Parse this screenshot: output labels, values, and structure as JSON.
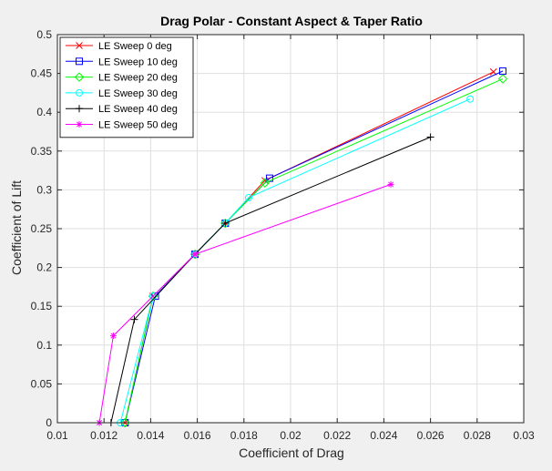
{
  "chart_data": {
    "type": "line",
    "title": "Drag Polar - Constant Aspect & Taper Ratio",
    "xlabel": "Coefficient of Drag",
    "ylabel": "Coefficient of Lift",
    "xlim": [
      0.01,
      0.03
    ],
    "ylim": [
      0,
      0.5
    ],
    "xticks": [
      0.01,
      0.012,
      0.014,
      0.016,
      0.018,
      0.02,
      0.022,
      0.024,
      0.026,
      0.028,
      0.03
    ],
    "xtick_labels": [
      "0.01",
      "0.012",
      "0.014",
      "0.016",
      "0.018",
      "0.02",
      "0.022",
      "0.024",
      "0.026",
      "0.028",
      "0.03"
    ],
    "yticks": [
      0,
      0.05,
      0.1,
      0.15,
      0.2,
      0.25,
      0.3,
      0.35,
      0.4,
      0.45,
      0.5
    ],
    "ytick_labels": [
      "0",
      "0.05",
      "0.1",
      "0.15",
      "0.2",
      "0.25",
      "0.3",
      "0.35",
      "0.4",
      "0.45",
      "0.5"
    ],
    "grid": true,
    "legend_position": "top-left",
    "series": [
      {
        "name": "LE Sweep 0 deg",
        "color": "#ff0000",
        "marker": "x",
        "x": [
          0.0129,
          0.0141,
          0.0159,
          0.0172,
          0.0189,
          0.0287
        ],
        "y": [
          0,
          0.163,
          0.217,
          0.257,
          0.312,
          0.452
        ]
      },
      {
        "name": "LE Sweep 10 deg",
        "color": "#0000ff",
        "marker": "square",
        "x": [
          0.0129,
          0.0142,
          0.0159,
          0.0172,
          0.0191,
          0.0291
        ],
        "y": [
          0,
          0.163,
          0.217,
          0.257,
          0.315,
          0.453
        ]
      },
      {
        "name": "LE Sweep 20 deg",
        "color": "#00ff00",
        "marker": "diamond",
        "x": [
          0.0129,
          0.0141,
          0.0159,
          0.0172,
          0.0189,
          0.0291
        ],
        "y": [
          0,
          0.163,
          0.217,
          0.257,
          0.309,
          0.443
        ]
      },
      {
        "name": "LE Sweep 30 deg",
        "color": "#00ffff",
        "marker": "circle",
        "x": [
          0.0127,
          0.0141,
          0.0159,
          0.0172,
          0.0182,
          0.0277
        ],
        "y": [
          0,
          0.163,
          0.217,
          0.257,
          0.29,
          0.417
        ]
      },
      {
        "name": "LE Sweep 40 deg",
        "color": "#000000",
        "marker": "plus",
        "x": [
          0.0123,
          0.0133,
          0.0159,
          0.0172,
          0.026
        ],
        "y": [
          0,
          0.133,
          0.217,
          0.257,
          0.368
        ]
      },
      {
        "name": "LE Sweep 50 deg",
        "color": "#ff00ff",
        "marker": "star",
        "x": [
          0.0118,
          0.0124,
          0.0159,
          0.0243
        ],
        "y": [
          0,
          0.112,
          0.217,
          0.307
        ]
      }
    ]
  }
}
